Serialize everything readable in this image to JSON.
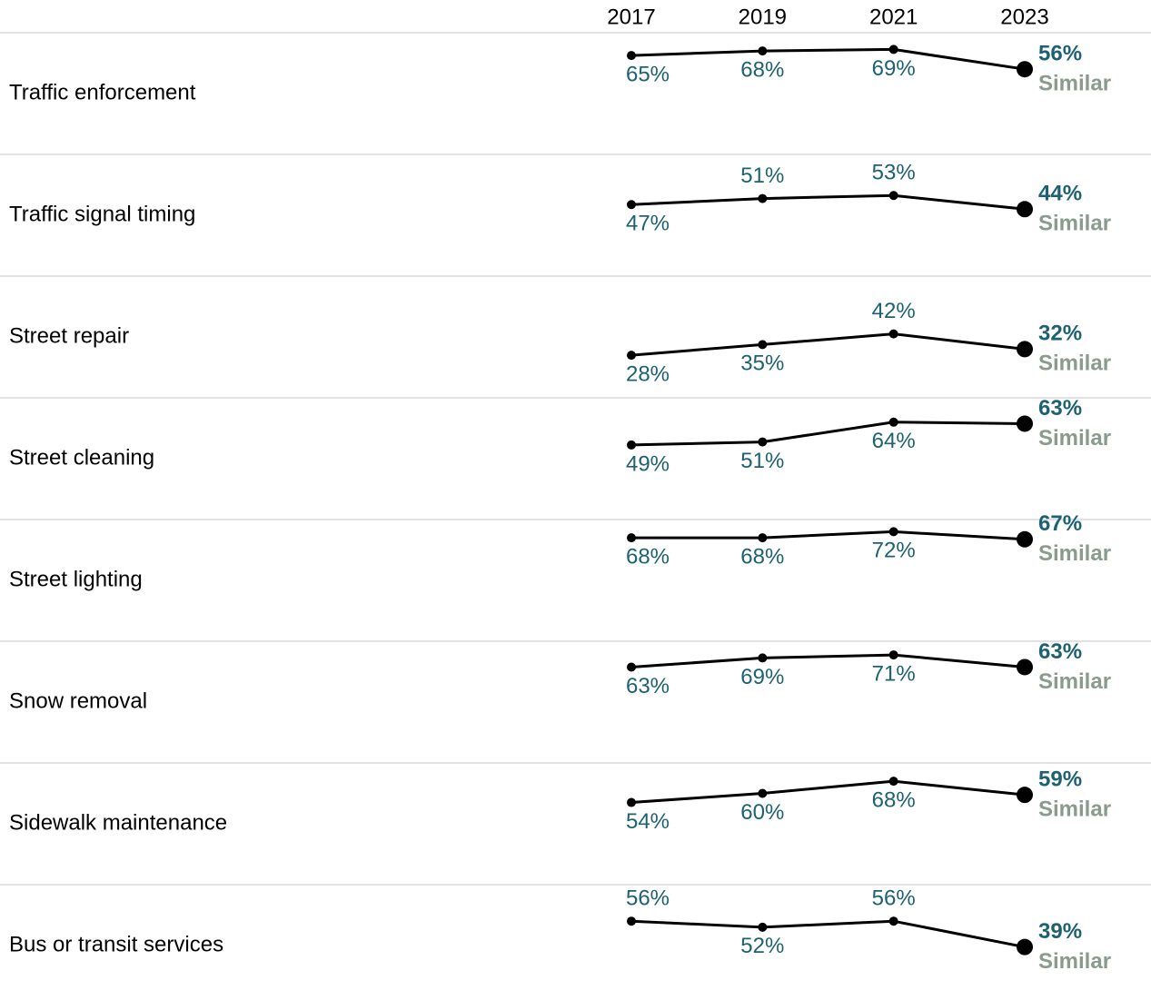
{
  "chart_data": {
    "type": "line",
    "x": [
      2017,
      2019,
      2021,
      2023
    ],
    "xlim": [
      2017,
      2023
    ],
    "xticks": [
      2017,
      2019,
      2021,
      2023
    ],
    "ylim": [
      0,
      80
    ],
    "line_color": "#000000",
    "label_color": "#1d6272",
    "trend_color": "#8a9a8c",
    "series": [
      {
        "name": "Traffic enforcement",
        "values": [
          65,
          68,
          69,
          56
        ],
        "value_labels": [
          "65%",
          "68%",
          "69%",
          "56%"
        ],
        "trend": "Similar"
      },
      {
        "name": "Traffic signal timing",
        "values": [
          47,
          51,
          53,
          44
        ],
        "value_labels": [
          "47%",
          "51%",
          "53%",
          "44%"
        ],
        "trend": "Similar"
      },
      {
        "name": "Street repair",
        "values": [
          28,
          35,
          42,
          32
        ],
        "value_labels": [
          "28%",
          "35%",
          "42%",
          "32%"
        ],
        "trend": "Similar"
      },
      {
        "name": "Street cleaning",
        "values": [
          49,
          51,
          64,
          63
        ],
        "value_labels": [
          "49%",
          "51%",
          "64%",
          "63%"
        ],
        "trend": "Similar"
      },
      {
        "name": "Street lighting",
        "values": [
          68,
          68,
          72,
          67
        ],
        "value_labels": [
          "68%",
          "68%",
          "72%",
          "67%"
        ],
        "trend": "Similar"
      },
      {
        "name": "Snow removal",
        "values": [
          63,
          69,
          71,
          63
        ],
        "value_labels": [
          "63%",
          "69%",
          "71%",
          "63%"
        ],
        "trend": "Similar"
      },
      {
        "name": "Sidewalk maintenance",
        "values": [
          54,
          60,
          68,
          59
        ],
        "value_labels": [
          "54%",
          "60%",
          "68%",
          "59%"
        ],
        "trend": "Similar"
      },
      {
        "name": "Bus or transit services",
        "values": [
          56,
          52,
          56,
          39
        ],
        "value_labels": [
          "56%",
          "52%",
          "56%",
          "39%"
        ],
        "trend": "Similar"
      }
    ]
  }
}
